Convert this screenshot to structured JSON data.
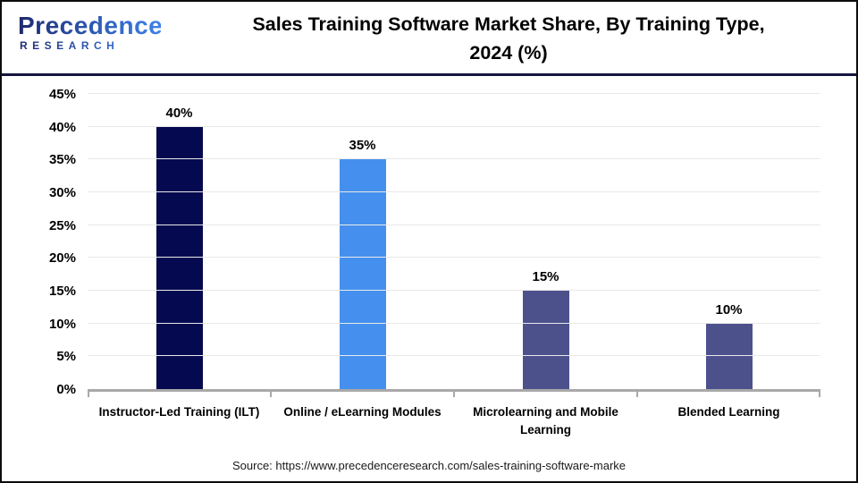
{
  "header": {
    "logo": {
      "name": "Precedence",
      "sub": "RESEARCH"
    },
    "title_line1": "Sales Training Software Market Share, By Training Type,",
    "title_line2": "2024 (%)"
  },
  "chart_data": {
    "type": "bar",
    "title": "Sales Training Software Market Share, By Training Type, 2024 (%)",
    "categories": [
      "Instructor-Led Training (ILT)",
      "Online / eLearning Modules",
      "Microlearning and Mobile Learning",
      "Blended Learning"
    ],
    "values": [
      40,
      35,
      15,
      10
    ],
    "value_labels": [
      "40%",
      "35%",
      "15%",
      "10%"
    ],
    "bar_colors": [
      "#050a50",
      "#4590ee",
      "#4c518c",
      "#4c518c"
    ],
    "xlabel": "",
    "ylabel": "",
    "ylim": [
      0,
      45
    ],
    "yticks": [
      0,
      5,
      10,
      15,
      20,
      25,
      30,
      35,
      40,
      45
    ],
    "ytick_labels": [
      "0%",
      "5%",
      "10%",
      "15%",
      "20%",
      "25%",
      "30%",
      "35%",
      "40%",
      "45%"
    ],
    "grid": "horizontal",
    "legend": "none"
  },
  "footer": {
    "source": "Source: https://www.precedenceresearch.com/sales-training-software-marke"
  },
  "colors": {
    "page_border": "#0d0d0d",
    "divider": "#15153f",
    "baseline": "#a9a9a9",
    "gridline": "#e9e9e9",
    "title": "#000000",
    "logo_gradient_start": "#1f2a6d",
    "logo_gradient_end": "#3f82e8",
    "source_text": "#1a1a1a"
  }
}
